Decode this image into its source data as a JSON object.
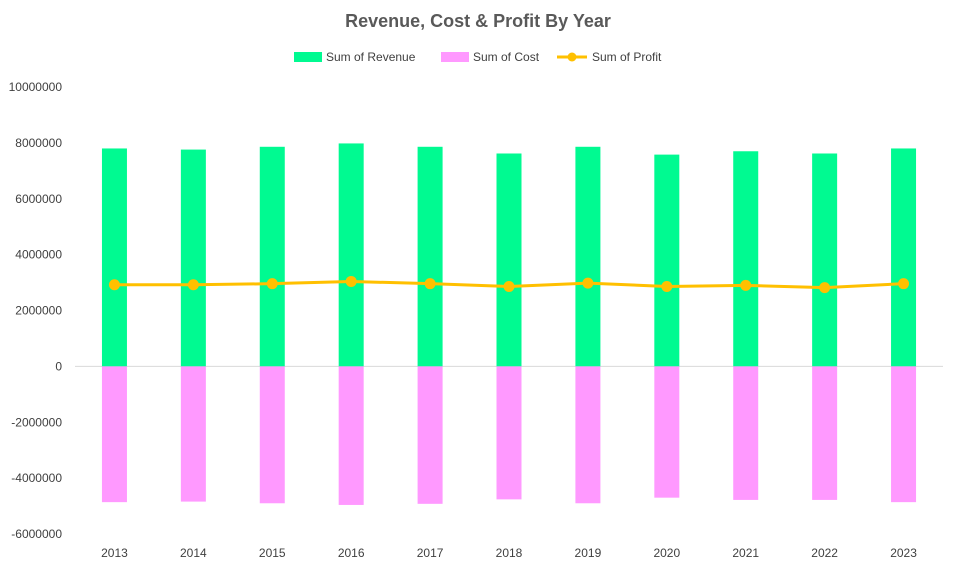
{
  "chart_data": {
    "type": "bar",
    "title": "Revenue, Cost & Profit By Year",
    "categories": [
      "2013",
      "2014",
      "2015",
      "2016",
      "2017",
      "2018",
      "2019",
      "2020",
      "2021",
      "2022",
      "2023"
    ],
    "series": [
      {
        "name": "Sum of Revenue",
        "type": "bar",
        "color": "#00fa91",
        "values": [
          7800000,
          7760000,
          7860000,
          7980000,
          7860000,
          7620000,
          7860000,
          7580000,
          7700000,
          7620000,
          7800000
        ]
      },
      {
        "name": "Sum of Cost",
        "type": "bar",
        "color": "#ff99ff",
        "values": [
          -4860000,
          -4840000,
          -4900000,
          -4960000,
          -4920000,
          -4760000,
          -4900000,
          -4700000,
          -4780000,
          -4780000,
          -4860000
        ]
      },
      {
        "name": "Sum of Profit",
        "type": "line",
        "color": "#ffc000",
        "values": [
          2920000,
          2920000,
          2960000,
          3040000,
          2960000,
          2860000,
          2980000,
          2860000,
          2900000,
          2820000,
          2960000
        ]
      }
    ],
    "ylim": [
      -6000000,
      10000000
    ],
    "yticks": [
      "10000000",
      "8000000",
      "6000000",
      "4000000",
      "2000000",
      "0",
      "-2000000",
      "-4000000",
      "-6000000"
    ],
    "ytick_values": [
      10000000,
      8000000,
      6000000,
      4000000,
      2000000,
      0,
      -2000000,
      -4000000,
      -6000000
    ],
    "xlabel": "",
    "ylabel": "",
    "grid": false,
    "legend_position": "top"
  }
}
